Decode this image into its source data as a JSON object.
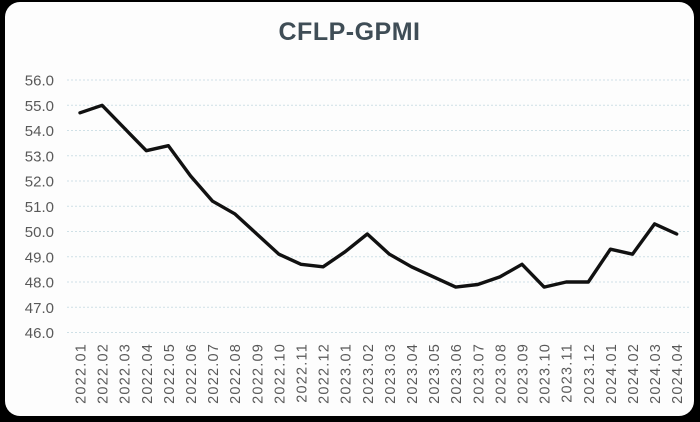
{
  "chart_data": {
    "type": "line",
    "title": "CFLP-GPMI",
    "xlabel": "",
    "ylabel": "",
    "categories": [
      "2022.01",
      "2022.02",
      "2022.03",
      "2022.04",
      "2022.05",
      "2022.06",
      "2022.07",
      "2022.08",
      "2022.09",
      "2022.10",
      "2022.11",
      "2022.12",
      "2023.01",
      "2023.02",
      "2023.03",
      "2023.04",
      "2023.05",
      "2023.06",
      "2023.07",
      "2023.08",
      "2023.09",
      "2023.10",
      "2023.11",
      "2023.12",
      "2024.01",
      "2024.02",
      "2024.03",
      "2024.04"
    ],
    "series": [
      {
        "name": "CFLP-GPMI",
        "values": [
          54.7,
          55.0,
          54.1,
          53.2,
          53.4,
          52.2,
          51.2,
          50.7,
          49.9,
          49.1,
          48.7,
          48.6,
          49.2,
          49.9,
          49.1,
          48.6,
          48.2,
          47.8,
          47.9,
          48.2,
          48.7,
          47.8,
          48.0,
          48.0,
          49.3,
          49.1,
          50.3,
          49.9
        ]
      }
    ],
    "ylim": [
      46.0,
      56.0
    ],
    "y_tick_step": 1.0,
    "y_tick_labels": [
      "56.0",
      "55.0",
      "54.0",
      "53.0",
      "52.0",
      "51.0",
      "50.0",
      "49.0",
      "48.0",
      "47.0",
      "46.0"
    ],
    "grid": "horizontal-dashed",
    "legend": "none",
    "x_label_rotation_deg": 90,
    "colors": {
      "line": "#111111",
      "card_background": "#fdfdfd",
      "page_background": "#000000",
      "title": "#3f4d56",
      "tick_labels": "#595959",
      "gridlines": "#cfe0e6"
    }
  }
}
